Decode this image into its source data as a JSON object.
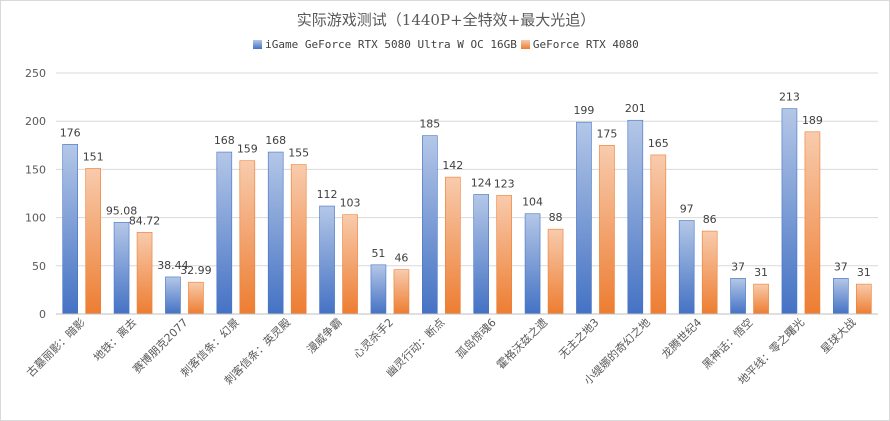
{
  "chart_data": {
    "type": "bar",
    "title": "实际游戏测试（1440P+全特效+最大光追）",
    "xlabel": "",
    "ylabel": "",
    "ylim": [
      0,
      250
    ],
    "yticks": [
      0,
      50,
      100,
      150,
      200,
      250
    ],
    "grid": true,
    "legend_position": "top",
    "categories": [
      "古墓丽影：暗影",
      "地铁：离去",
      "赛博朋克2077",
      "刺客信条：幻景",
      "刺客信条：英灵殿",
      "漫威争霸",
      "心灵杀手2",
      "幽灵行动：断点",
      "孤岛惊魂6",
      "霍格沃兹之遗",
      "无主之地3",
      "小缇娜的奇幻之地",
      "龙腾世纪4",
      "黑神话：悟空",
      "地平线：零之曙光",
      "星球大战"
    ],
    "series": [
      {
        "name": "iGame GeForce RTX 5080 Ultra W OC 16GB",
        "color": "#4472c4",
        "values": [
          176,
          95.08,
          38.44,
          168,
          168,
          112,
          51,
          185,
          124,
          104,
          199,
          201,
          97,
          37,
          213,
          37
        ],
        "labels": [
          "176",
          "95.08",
          "38.44",
          "168",
          "168",
          "112",
          "51",
          "185",
          "124",
          "104",
          "199",
          "201",
          "97",
          "37",
          "213",
          "37"
        ]
      },
      {
        "name": "GeForce RTX 4080",
        "color": "#ed7d31",
        "values": [
          151,
          84.72,
          32.99,
          159,
          155,
          103,
          46,
          142,
          123,
          88,
          175,
          165,
          86,
          31,
          189,
          31
        ],
        "labels": [
          "151",
          "84.72",
          "32.99",
          "159",
          "155",
          "103",
          "46",
          "142",
          "123",
          "88",
          "175",
          "165",
          "86",
          "31",
          "189",
          "31"
        ]
      }
    ]
  }
}
